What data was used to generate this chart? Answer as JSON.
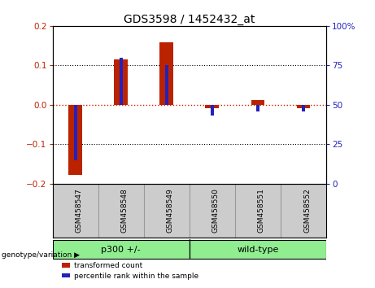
{
  "title": "GDS3598 / 1452432_at",
  "samples": [
    "GSM458547",
    "GSM458548",
    "GSM458549",
    "GSM458550",
    "GSM458551",
    "GSM458552"
  ],
  "red_values": [
    -0.178,
    0.115,
    0.158,
    -0.008,
    0.012,
    -0.008
  ],
  "blue_values_pct": [
    15,
    80,
    75,
    43,
    46,
    46
  ],
  "groups": [
    {
      "label": "p300 +/-",
      "start": 0,
      "end": 2
    },
    {
      "label": "wild-type",
      "start": 3,
      "end": 5
    }
  ],
  "group_color": "#90ee90",
  "group_label_prefix": "genotype/variation ▶",
  "ylim_left": [
    -0.2,
    0.2
  ],
  "ylim_right": [
    0,
    100
  ],
  "yticks_left": [
    -0.2,
    -0.1,
    0,
    0.1,
    0.2
  ],
  "yticks_right": [
    0,
    25,
    50,
    75,
    100
  ],
  "ytick_right_labels": [
    "0",
    "25",
    "50",
    "75",
    "100%"
  ],
  "red_color": "#bb2200",
  "blue_color": "#2222bb",
  "legend_red": "transformed count",
  "legend_blue": "percentile rank within the sample",
  "red_bar_width": 0.3,
  "blue_bar_width": 0.07,
  "zero_line_color": "#cc2200",
  "label_bg_color": "#cccccc",
  "label_sep_color": "#999999"
}
